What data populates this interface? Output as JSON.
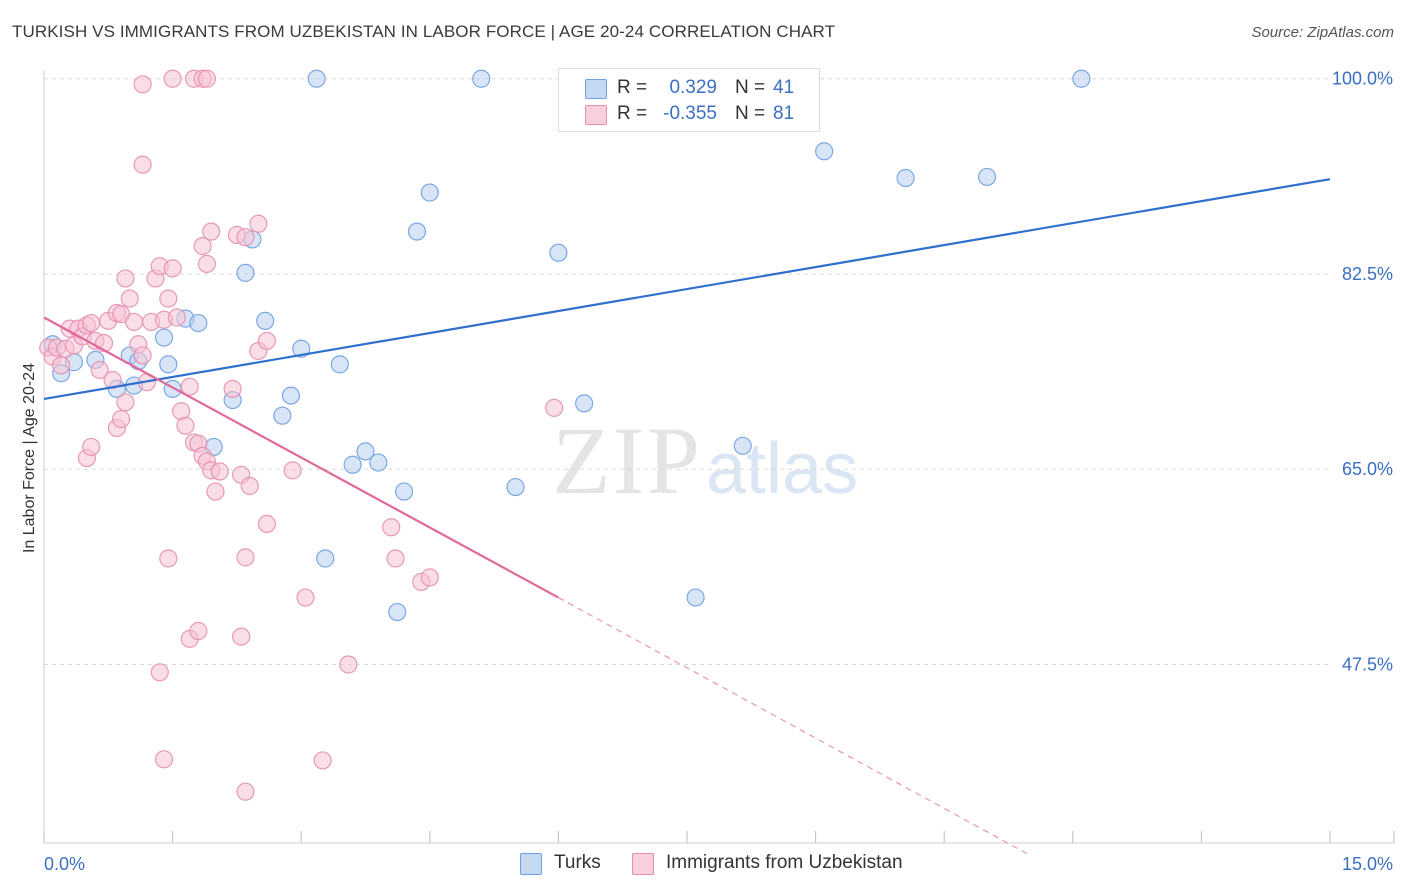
{
  "chart_data": {
    "type": "scatter",
    "title": "TURKISH VS IMMIGRANTS FROM UZBEKISTAN IN LABOR FORCE | AGE 20-24 CORRELATION CHART",
    "source": "Source: ZipAtlas.com",
    "ylabel": "In Labor Force | Age 20-24",
    "xlim": [
      0,
      15
    ],
    "ylim": [
      31.5,
      101.5
    ],
    "x_tick_labels": {
      "min": "0.0%",
      "max": "15.0%"
    },
    "y_ticks": [
      {
        "value": 100.0,
        "label": "100.0%"
      },
      {
        "value": 82.5,
        "label": "82.5%"
      },
      {
        "value": 65.0,
        "label": "65.0%"
      },
      {
        "value": 47.5,
        "label": "47.5%"
      }
    ],
    "watermark": {
      "zip": "ZIP",
      "atlas": "atlas"
    },
    "legend": {
      "r_label": "R =",
      "n_label": "N =",
      "entries": [
        {
          "name": "Turks",
          "r": "0.329",
          "n": "41"
        },
        {
          "name": "Immigrants from Uzbekistan",
          "r": "-0.355",
          "n": "81"
        }
      ]
    },
    "series": [
      {
        "name": "Turks",
        "color": "#6fa0e0",
        "fill": "#b8d0f0",
        "trend_color": "#2f6fce",
        "trend": {
          "x0": 0.0,
          "y0": 71.3,
          "x1": 15.0,
          "y1": 91.0
        },
        "points": [
          [
            0.1,
            76.2
          ],
          [
            0.2,
            73.6
          ],
          [
            0.35,
            74.6
          ],
          [
            0.6,
            74.8
          ],
          [
            0.85,
            72.2
          ],
          [
            1.0,
            75.2
          ],
          [
            1.1,
            74.7
          ],
          [
            1.05,
            72.5
          ],
          [
            1.45,
            74.4
          ],
          [
            1.5,
            72.2
          ],
          [
            1.4,
            76.8
          ],
          [
            1.65,
            78.5
          ],
          [
            1.8,
            78.1
          ],
          [
            1.98,
            67.0
          ],
          [
            2.2,
            71.2
          ],
          [
            2.35,
            82.6
          ],
          [
            2.43,
            85.6
          ],
          [
            2.58,
            78.3
          ],
          [
            2.78,
            69.8
          ],
          [
            2.88,
            71.6
          ],
          [
            3.0,
            75.8
          ],
          [
            3.28,
            57.0
          ],
          [
            3.45,
            74.4
          ],
          [
            3.6,
            65.4
          ],
          [
            3.75,
            66.6
          ],
          [
            3.9,
            65.6
          ],
          [
            4.12,
            52.2
          ],
          [
            4.2,
            63.0
          ],
          [
            4.35,
            86.3
          ],
          [
            4.5,
            89.8
          ],
          [
            3.18,
            100.0
          ],
          [
            5.1,
            100.0
          ],
          [
            5.5,
            63.4
          ],
          [
            6.0,
            84.4
          ],
          [
            6.3,
            70.9
          ],
          [
            8.15,
            67.1
          ],
          [
            7.6,
            53.5
          ],
          [
            9.1,
            93.5
          ],
          [
            10.05,
            91.1
          ],
          [
            11.0,
            91.2
          ],
          [
            12.1,
            100.0
          ]
        ]
      },
      {
        "name": "Immigrants from Uzbekistan",
        "color": "#e58fb0",
        "fill": "#f6c3d4",
        "trend_color": "#e0689a",
        "trend": {
          "x0": 0.0,
          "y0": 78.6,
          "x1": 6.0,
          "y1": 53.5
        },
        "trend_dash": {
          "x0": 6.0,
          "y0": 53.5,
          "x1": 11.5,
          "y1": 30.4
        },
        "points": [
          [
            0.05,
            75.9
          ],
          [
            0.1,
            75.1
          ],
          [
            0.15,
            75.9
          ],
          [
            0.2,
            74.3
          ],
          [
            0.25,
            75.8
          ],
          [
            0.3,
            77.6
          ],
          [
            0.35,
            76.1
          ],
          [
            0.4,
            77.6
          ],
          [
            0.45,
            76.9
          ],
          [
            0.5,
            77.9
          ],
          [
            0.55,
            78.1
          ],
          [
            0.6,
            76.5
          ],
          [
            0.65,
            73.9
          ],
          [
            0.7,
            76.3
          ],
          [
            0.75,
            78.3
          ],
          [
            0.8,
            73.0
          ],
          [
            0.85,
            79.0
          ],
          [
            0.9,
            78.9
          ],
          [
            0.95,
            82.1
          ],
          [
            1.0,
            80.3
          ],
          [
            1.05,
            78.2
          ],
          [
            1.1,
            76.2
          ],
          [
            1.15,
            75.2
          ],
          [
            1.2,
            72.8
          ],
          [
            1.25,
            78.2
          ],
          [
            1.3,
            82.1
          ],
          [
            1.35,
            83.2
          ],
          [
            1.4,
            78.4
          ],
          [
            1.45,
            80.3
          ],
          [
            1.5,
            83.0
          ],
          [
            1.55,
            78.6
          ],
          [
            1.6,
            70.2
          ],
          [
            1.65,
            68.9
          ],
          [
            1.7,
            72.4
          ],
          [
            1.75,
            67.4
          ],
          [
            1.8,
            67.3
          ],
          [
            1.85,
            66.2
          ],
          [
            1.9,
            65.7
          ],
          [
            1.95,
            64.9
          ],
          [
            2.0,
            63.0
          ],
          [
            1.15,
            92.3
          ],
          [
            1.15,
            99.5
          ],
          [
            1.5,
            100.0
          ],
          [
            1.75,
            100.0
          ],
          [
            1.85,
            100.0
          ],
          [
            1.9,
            100.0
          ],
          [
            1.85,
            85.0
          ],
          [
            1.9,
            83.4
          ],
          [
            1.95,
            86.3
          ],
          [
            2.25,
            86.0
          ],
          [
            2.35,
            85.8
          ],
          [
            2.5,
            87.0
          ],
          [
            2.5,
            75.6
          ],
          [
            2.6,
            76.5
          ],
          [
            2.2,
            72.2
          ],
          [
            2.05,
            64.8
          ],
          [
            2.3,
            64.5
          ],
          [
            2.4,
            63.5
          ],
          [
            2.6,
            60.1
          ],
          [
            2.9,
            64.9
          ],
          [
            1.45,
            57.0
          ],
          [
            2.35,
            57.1
          ],
          [
            1.7,
            49.8
          ],
          [
            1.8,
            50.5
          ],
          [
            2.3,
            50.0
          ],
          [
            1.35,
            46.8
          ],
          [
            3.55,
            47.5
          ],
          [
            1.4,
            39.0
          ],
          [
            3.25,
            38.9
          ],
          [
            2.35,
            36.1
          ],
          [
            3.05,
            53.5
          ],
          [
            4.05,
            59.8
          ],
          [
            4.1,
            57.0
          ],
          [
            4.4,
            54.9
          ],
          [
            4.5,
            55.3
          ],
          [
            5.95,
            70.5
          ],
          [
            0.5,
            66.0
          ],
          [
            0.55,
            67.0
          ],
          [
            0.85,
            68.7
          ],
          [
            0.9,
            69.5
          ],
          [
            0.95,
            71.0
          ]
        ]
      }
    ]
  }
}
